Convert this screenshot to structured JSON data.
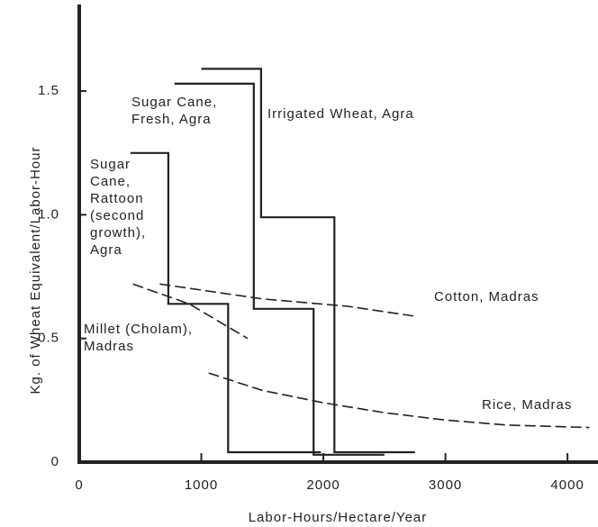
{
  "chart_data": {
    "type": "line",
    "xlabel": "Labor-Hours/Hectare/Year",
    "ylabel": "Kg. of Wheat Equivalent/Labor-Hour",
    "xlim": [
      0,
      4250
    ],
    "ylim": [
      0,
      1.85
    ],
    "xticks": [
      0,
      1000,
      2000,
      3000,
      4000
    ],
    "yticks": [
      0,
      0.5,
      {
        "value": 1,
        "label": "1.0"
      },
      1.5
    ],
    "grid": false,
    "series": [
      {
        "name": "Irrigated Wheat, Agra",
        "color": "#222222",
        "style": "solid",
        "x": [
          1000,
          1490,
          1490,
          2090,
          2090,
          2750
        ],
        "values": [
          1.59,
          1.59,
          0.99,
          0.99,
          0.04,
          0.04
        ]
      },
      {
        "name": "Sugar Cane, Fresh, Agra",
        "color": "#222222",
        "style": "solid",
        "x": [
          780,
          1430,
          1430,
          1920,
          1920,
          2500
        ],
        "values": [
          1.53,
          1.53,
          0.62,
          0.62,
          0.03,
          0.03
        ]
      },
      {
        "name": "Sugar Cane, Rattoon (second growth), Agra",
        "color": "#222222",
        "style": "solid",
        "x": [
          420,
          730,
          730,
          1220,
          1220,
          1980
        ],
        "values": [
          1.25,
          1.25,
          0.64,
          0.64,
          0.04,
          0.04
        ]
      },
      {
        "name": "Cotton, Madras",
        "color": "#222222",
        "style": "dashed",
        "x": [
          660,
          1500,
          2200,
          2750
        ],
        "values": [
          0.72,
          0.66,
          0.63,
          0.59
        ]
      },
      {
        "name": "Millet (Cholam), Madras",
        "color": "#222222",
        "style": "dashed",
        "x": [
          440,
          900,
          1380
        ],
        "values": [
          0.72,
          0.64,
          0.5
        ]
      },
      {
        "name": "Rice, Madras",
        "color": "#222222",
        "style": "dashed",
        "x": [
          1060,
          1500,
          2000,
          2500,
          3000,
          3500,
          4180
        ],
        "values": [
          0.36,
          0.29,
          0.24,
          0.2,
          0.17,
          0.15,
          0.14
        ]
      }
    ]
  }
}
